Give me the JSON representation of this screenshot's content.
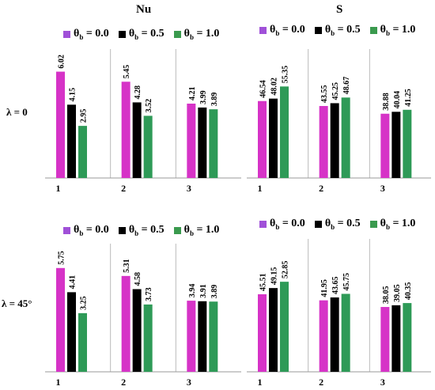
{
  "column_titles": [
    "Nu",
    "S"
  ],
  "row_labels": [
    "λ = 0",
    "λ = 45°"
  ],
  "legend_text": {
    "prefix": "θ",
    "sub": "b",
    "series": [
      "= 0.0",
      "= 0.5",
      "= 1.0"
    ]
  },
  "colors": {
    "series": [
      "#d633c7",
      "#000000",
      "#2e9a57"
    ],
    "legend": [
      "#a050d8",
      "#000000",
      "#3a9a4e"
    ]
  },
  "chart_data": [
    {
      "type": "bar",
      "title": "Nu",
      "row": "λ = 0",
      "categories": [
        "1",
        "2",
        "3"
      ],
      "ylim": [
        0,
        7.3
      ],
      "series": [
        {
          "name": "θb = 0.0",
          "values": [
            6.02,
            5.45,
            4.21
          ]
        },
        {
          "name": "θb = 0.5",
          "values": [
            4.15,
            4.28,
            3.99
          ]
        },
        {
          "name": "θb = 1.0",
          "values": [
            2.95,
            3.52,
            3.89
          ]
        }
      ]
    },
    {
      "type": "bar",
      "title": "S",
      "row": "λ = 0",
      "categories": [
        "1",
        "2",
        "3"
      ],
      "ylim": [
        0,
        78
      ],
      "series": [
        {
          "name": "θb = 0.0",
          "values": [
            46.54,
            43.55,
            38.88
          ]
        },
        {
          "name": "θb = 0.5",
          "values": [
            48.02,
            45.25,
            40.04
          ]
        },
        {
          "name": "θb = 1.0",
          "values": [
            55.35,
            48.67,
            41.25
          ]
        }
      ]
    },
    {
      "type": "bar",
      "title": "Nu",
      "row": "λ = 45°",
      "categories": [
        "1",
        "2",
        "3"
      ],
      "ylim": [
        0,
        7.1
      ],
      "series": [
        {
          "name": "θb = 0.0",
          "values": [
            5.75,
            5.31,
            3.94
          ]
        },
        {
          "name": "θb = 0.5",
          "values": [
            4.41,
            4.58,
            3.91
          ]
        },
        {
          "name": "θb = 1.0",
          "values": [
            3.25,
            3.73,
            3.89
          ]
        }
      ]
    },
    {
      "type": "bar",
      "title": "S",
      "row": "λ = 45°",
      "categories": [
        "1",
        "2",
        "3"
      ],
      "ylim": [
        0,
        78
      ],
      "series": [
        {
          "name": "θb = 0.0",
          "values": [
            45.51,
            41.95,
            38.05
          ]
        },
        {
          "name": "θb = 0.5",
          "values": [
            49.15,
            43.65,
            39.05
          ]
        },
        {
          "name": "θb = 1.0",
          "values": [
            52.85,
            45.75,
            40.35
          ]
        }
      ]
    }
  ]
}
